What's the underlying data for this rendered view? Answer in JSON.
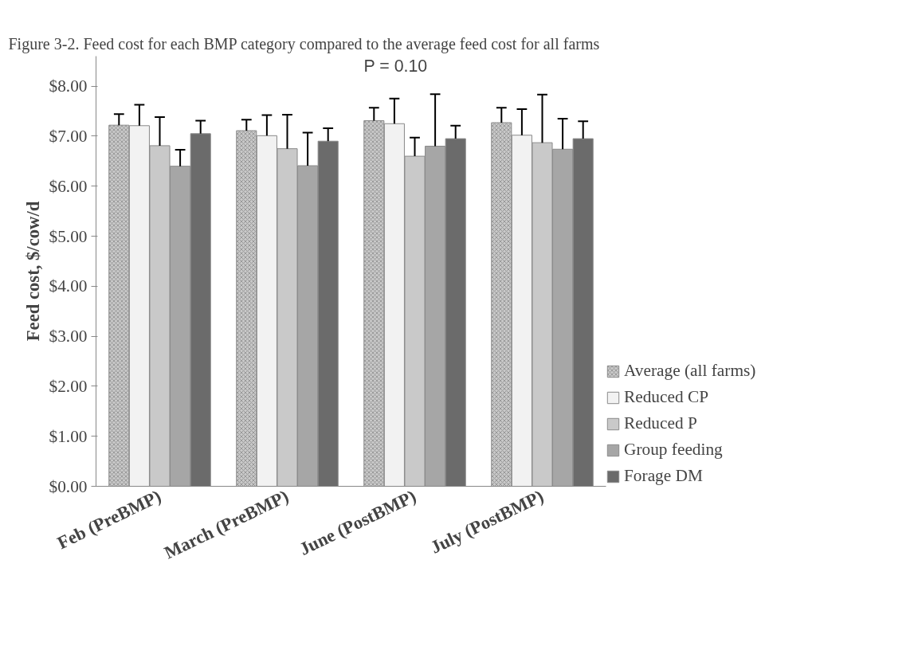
{
  "chart_data": {
    "type": "bar",
    "title": "Figure 3-2. Feed cost for each BMP category compared to the average feed cost for all farms",
    "ylabel": "Feed cost, $/cow/d",
    "categories": [
      "Feb (PreBMP)",
      "March (PreBMP)",
      "June (PostBMP)",
      "July (PostBMP)"
    ],
    "series": [
      {
        "name": "Average (all farms)",
        "color": "#c8c8c8",
        "values": [
          7.22,
          7.11,
          7.31,
          7.27
        ],
        "errors": [
          [
            7.22,
            7.44
          ],
          [
            7.11,
            7.33
          ],
          [
            7.31,
            7.57
          ],
          [
            7.27,
            7.57
          ]
        ]
      },
      {
        "name": "Reduced CP",
        "color": "#f2f2f2",
        "values": [
          7.21,
          7.01,
          7.25,
          7.02
        ],
        "errors": [
          [
            7.21,
            7.63
          ],
          [
            7.01,
            7.42
          ],
          [
            7.25,
            7.75
          ],
          [
            7.02,
            7.54
          ]
        ]
      },
      {
        "name": "Reduced P",
        "color": "#c9c9c9",
        "values": [
          6.81,
          6.75,
          6.6,
          6.87
        ],
        "errors": [
          [
            6.81,
            7.38
          ],
          [
            6.75,
            7.43
          ],
          [
            6.6,
            6.97
          ],
          [
            6.87,
            7.83
          ]
        ]
      },
      {
        "name": "Group feeding",
        "color": "#a6a6a6",
        "values": [
          6.4,
          6.41,
          6.8,
          6.74
        ],
        "errors": [
          [
            6.4,
            6.73
          ],
          [
            6.41,
            7.07
          ],
          [
            6.8,
            7.84
          ],
          [
            6.74,
            7.35
          ]
        ]
      },
      {
        "name": "Forage DM",
        "color": "#6b6b6b",
        "values": [
          7.05,
          6.9,
          6.95,
          6.95
        ],
        "errors": [
          [
            7.05,
            7.31
          ],
          [
            6.9,
            7.16
          ],
          [
            6.95,
            7.21
          ],
          [
            6.95,
            7.3
          ]
        ]
      }
    ],
    "ylim": [
      0,
      8.6
    ],
    "yticks": [
      {
        "value": 0,
        "label": "$0.00"
      },
      {
        "value": 1,
        "label": "$1.00"
      },
      {
        "value": 2,
        "label": "$2.00"
      },
      {
        "value": 3,
        "label": "$3.00"
      },
      {
        "value": 4,
        "label": "$4.00"
      },
      {
        "value": 5,
        "label": "$5.00"
      },
      {
        "value": 6,
        "label": "$6.00"
      },
      {
        "value": 7,
        "label": "$7.00"
      },
      {
        "value": 8,
        "label": "$8.00"
      }
    ],
    "annotations": [
      "P = 0.10"
    ],
    "legend": "right",
    "grid": false
  }
}
